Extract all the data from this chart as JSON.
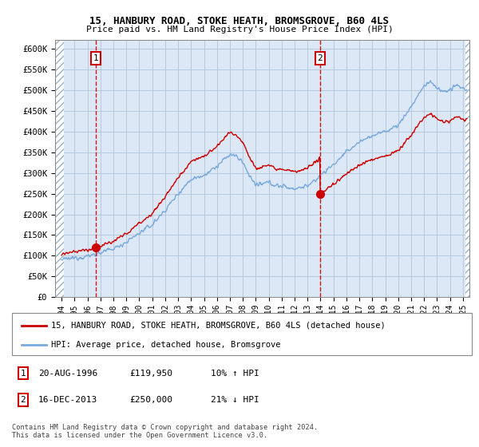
{
  "title": "15, HANBURY ROAD, STOKE HEATH, BROMSGROVE, B60 4LS",
  "subtitle": "Price paid vs. HM Land Registry's House Price Index (HPI)",
  "ylabel_ticks": [
    0,
    50000,
    100000,
    150000,
    200000,
    250000,
    300000,
    350000,
    400000,
    450000,
    500000,
    550000,
    600000
  ],
  "ylabel_labels": [
    "£0",
    "£50K",
    "£100K",
    "£150K",
    "£200K",
    "£250K",
    "£300K",
    "£350K",
    "£400K",
    "£450K",
    "£500K",
    "£550K",
    "£600K"
  ],
  "xlim": [
    1993.5,
    2025.5
  ],
  "ylim": [
    0,
    620000
  ],
  "sale1_year": 1996.63,
  "sale1_price": 119950,
  "sale1_label": "1",
  "sale1_date": "20-AUG-1996",
  "sale1_amount": "£119,950",
  "sale1_hpi": "10% ↑ HPI",
  "sale2_year": 2013.96,
  "sale2_price": 250000,
  "sale2_label": "2",
  "sale2_date": "16-DEC-2013",
  "sale2_amount": "£250,000",
  "sale2_hpi": "21% ↓ HPI",
  "line_color_red": "#cc0000",
  "line_color_blue": "#7aaadd",
  "background_color": "#dce8f5",
  "grid_color": "#b0c4d8",
  "legend_line1": "15, HANBURY ROAD, STOKE HEATH, BROMSGROVE, B60 4LS (detached house)",
  "legend_line2": "HPI: Average price, detached house, Bromsgrove",
  "footer": "Contains HM Land Registry data © Crown copyright and database right 2024.\nThis data is licensed under the Open Government Licence v3.0.",
  "xticks": [
    1994,
    1995,
    1996,
    1997,
    1998,
    1999,
    2000,
    2001,
    2002,
    2003,
    2004,
    2005,
    2006,
    2007,
    2008,
    2009,
    2010,
    2011,
    2012,
    2013,
    2014,
    2015,
    2016,
    2017,
    2018,
    2019,
    2020,
    2021,
    2022,
    2023,
    2024,
    2025
  ]
}
